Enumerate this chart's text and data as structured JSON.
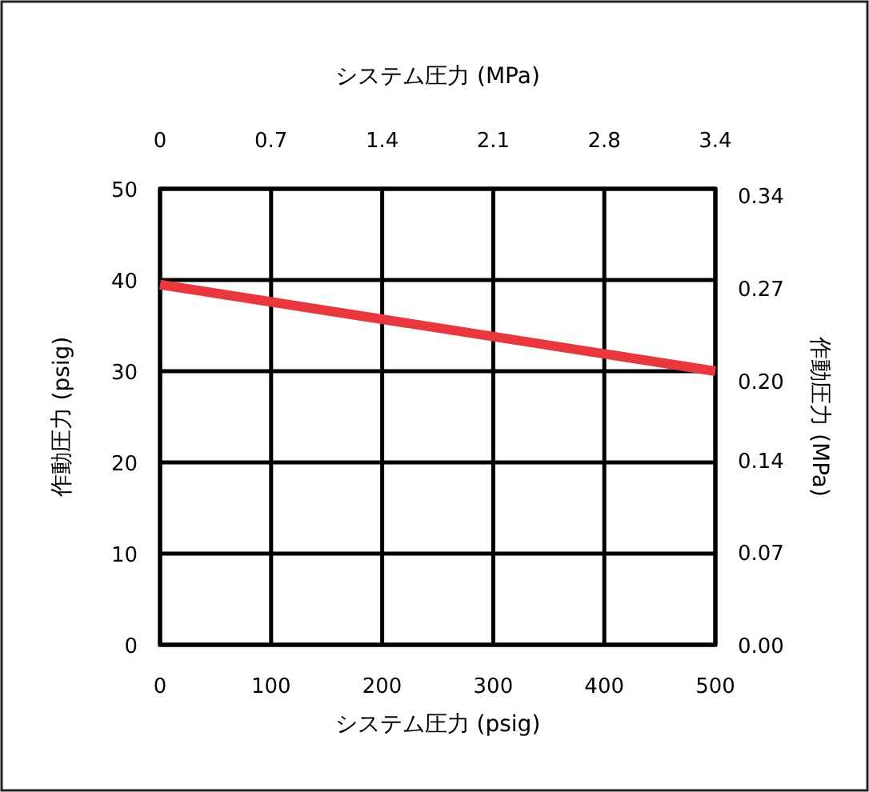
{
  "chart_data": {
    "type": "line",
    "x2label": "システム圧力 (MPa)",
    "xlabel": "システム圧力 (psig)",
    "ylabel": "作動圧力 (psig)",
    "y2label": "作動圧力 (MPa)",
    "x": [
      0,
      500
    ],
    "series": [
      {
        "color": "#e8383d",
        "values": [
          39.5,
          30
        ]
      }
    ],
    "xlim": [
      0,
      500
    ],
    "xticks": [
      0,
      100,
      200,
      300,
      400,
      500
    ],
    "ylim": [
      0,
      50
    ],
    "yticks": [
      0,
      10,
      20,
      30,
      40,
      50
    ],
    "x2lim": [
      0,
      3.447
    ],
    "x2ticks": [
      0,
      {
        "value": 0.689,
        "label": "0.7"
      },
      {
        "value": 1.379,
        "label": "1.4"
      },
      {
        "value": 2.068,
        "label": "2.1"
      },
      {
        "value": 2.758,
        "label": "2.8"
      },
      {
        "value": 3.447,
        "label": "3.4"
      }
    ],
    "y2lim": [
      0,
      0.345
    ],
    "y2ticks": [
      {
        "value": 0,
        "label": "0.00"
      },
      {
        "value": 0.07,
        "label": "0.07"
      },
      {
        "value": 0.14,
        "label": "0.14"
      },
      {
        "value": 0.2,
        "label": "0.20"
      },
      {
        "value": 0.27,
        "label": "0.27"
      },
      {
        "value": 0.34,
        "label": "0.34"
      }
    ],
    "grid": true
  }
}
